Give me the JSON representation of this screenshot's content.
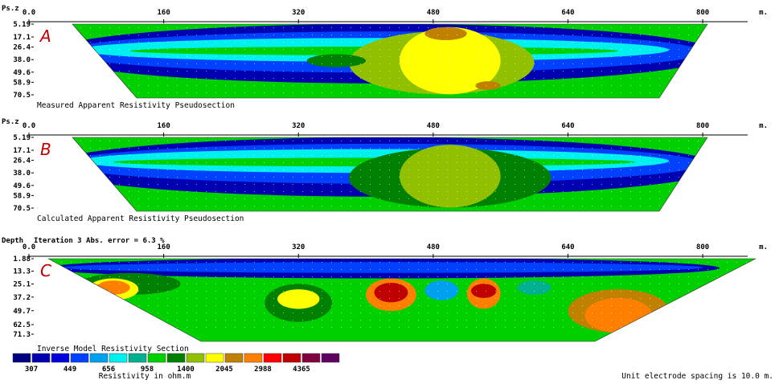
{
  "chart_data": [
    {
      "type": "heatmap",
      "panel_letter": "A",
      "ylabel": "Ps.z",
      "x_ticks": [
        "0.0",
        "160",
        "320",
        "480",
        "640",
        "800"
      ],
      "x_unit": "m.",
      "xlim": [
        0,
        840
      ],
      "y_ticks": [
        "5.19",
        "17.1",
        "26.4",
        "38.0",
        "49.6",
        "58.9",
        "70.5"
      ],
      "caption": "Measured Apparent Resistivity Pseudosection",
      "zones": [
        {
          "x": [
            20,
            820
          ],
          "y": [
            5,
            60
          ],
          "level": 1
        },
        {
          "x": [
            40,
            800
          ],
          "y": [
            12,
            50
          ],
          "level": 3
        },
        {
          "x": [
            60,
            760
          ],
          "y": [
            18,
            40
          ],
          "level": 5
        },
        {
          "x": [
            120,
            700
          ],
          "y": [
            26,
            34
          ],
          "level": 7
        },
        {
          "x": [
            380,
            600
          ],
          "y": [
            12,
            70
          ],
          "level": 9
        },
        {
          "x": [
            440,
            560
          ],
          "y": [
            8,
            70
          ],
          "level": 10
        },
        {
          "x": [
            470,
            520
          ],
          "y": [
            8,
            20
          ],
          "level": 11
        },
        {
          "x": [
            530,
            560
          ],
          "y": [
            58,
            66
          ],
          "level": 11
        },
        {
          "x": [
            330,
            400
          ],
          "y": [
            33,
            45
          ],
          "level": 8
        }
      ]
    },
    {
      "type": "heatmap",
      "panel_letter": "B",
      "ylabel": "Ps.z",
      "x_ticks": [
        "0.0",
        "160",
        "320",
        "480",
        "640",
        "800"
      ],
      "x_unit": "m.",
      "xlim": [
        0,
        840
      ],
      "y_ticks": [
        "5.19",
        "17.1",
        "26.4",
        "38.0",
        "49.6",
        "58.9",
        "70.5"
      ],
      "caption": "Calculated Apparent Resistivity Pseudosection",
      "zones": [
        {
          "x": [
            20,
            820
          ],
          "y": [
            5,
            60
          ],
          "level": 1
        },
        {
          "x": [
            40,
            800
          ],
          "y": [
            11,
            48
          ],
          "level": 3
        },
        {
          "x": [
            60,
            760
          ],
          "y": [
            16,
            38
          ],
          "level": 5
        },
        {
          "x": [
            100,
            720
          ],
          "y": [
            24,
            32
          ],
          "level": 7
        },
        {
          "x": [
            380,
            620
          ],
          "y": [
            15,
            70
          ],
          "level": 8
        },
        {
          "x": [
            440,
            560
          ],
          "y": [
            12,
            70
          ],
          "level": 9
        },
        {
          "x": [
            470,
            520
          ],
          "y": [
            18,
            62
          ],
          "level": 9
        }
      ]
    },
    {
      "type": "heatmap",
      "panel_letter": "C",
      "ylabel": "Depth",
      "title": "Iteration 3 Abs. error = 6.3 %",
      "x_ticks": [
        "0.0",
        "160",
        "320",
        "480",
        "640",
        "800"
      ],
      "x_unit": "m.",
      "xlim": [
        0,
        840
      ],
      "y_ticks": [
        "1.88",
        "13.3",
        "25.1",
        "37.2",
        "49.7",
        "62.5",
        "71.3"
      ],
      "caption": "Inverse Model Resistivity Section",
      "zones": [
        {
          "x": [
            20,
            820
          ],
          "y": [
            1,
            20
          ],
          "level": 1
        },
        {
          "x": [
            40,
            800
          ],
          "y": [
            5,
            15
          ],
          "level": 3
        },
        {
          "x": [
            60,
            180
          ],
          "y": [
            15,
            35
          ],
          "level": 8
        },
        {
          "x": [
            70,
            130
          ],
          "y": [
            20,
            40
          ],
          "level": 10
        },
        {
          "x": [
            80,
            120
          ],
          "y": [
            22,
            35
          ],
          "level": 12
        },
        {
          "x": [
            280,
            360
          ],
          "y": [
            25,
            60
          ],
          "level": 8
        },
        {
          "x": [
            295,
            345
          ],
          "y": [
            30,
            48
          ],
          "level": 10
        },
        {
          "x": [
            400,
            460
          ],
          "y": [
            20,
            50
          ],
          "level": 12
        },
        {
          "x": [
            410,
            450
          ],
          "y": [
            24,
            42
          ],
          "level": 14
        },
        {
          "x": [
            470,
            510
          ],
          "y": [
            22,
            40
          ],
          "level": 4
        },
        {
          "x": [
            520,
            560
          ],
          "y": [
            20,
            48
          ],
          "level": 12
        },
        {
          "x": [
            525,
            555
          ],
          "y": [
            25,
            38
          ],
          "level": 14
        },
        {
          "x": [
            580,
            620
          ],
          "y": [
            22,
            35
          ],
          "level": 6
        },
        {
          "x": [
            640,
            760
          ],
          "y": [
            30,
            70
          ],
          "level": 11
        },
        {
          "x": [
            660,
            740
          ],
          "y": [
            38,
            70
          ],
          "level": 12
        }
      ]
    }
  ],
  "scale": {
    "colors": [
      "#000080",
      "#0000B0",
      "#0000D8",
      "#0040FF",
      "#00A0F0",
      "#00F0F0",
      "#00B090",
      "#00D000",
      "#008000",
      "#90C000",
      "#FFFF00",
      "#C08000",
      "#FF8000",
      "#FF0000",
      "#C00000",
      "#800040",
      "#600060"
    ],
    "values": [
      "307",
      "449",
      "656",
      "958",
      "1400",
      "2045",
      "2988",
      "4365"
    ],
    "title": "Resistivity in ohm.m"
  },
  "footer": {
    "spacing": "Unit electrode spacing is 10.0 m."
  }
}
